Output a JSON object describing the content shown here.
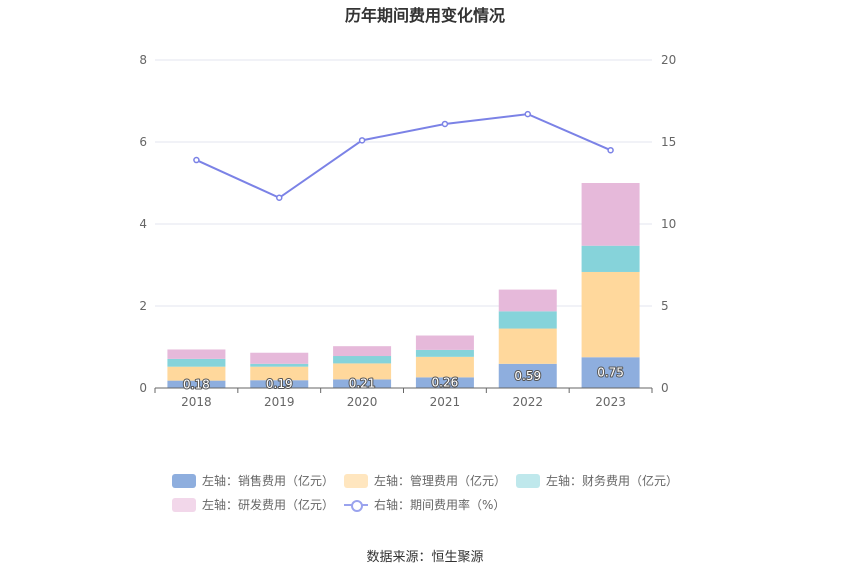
{
  "chart_data": {
    "type": "bar",
    "title": "历年期间费用变化情况",
    "categories": [
      "2018",
      "2019",
      "2020",
      "2021",
      "2022",
      "2023"
    ],
    "stacked": true,
    "y_left": {
      "min": 0,
      "max": 8,
      "ticks": [
        "0",
        "2",
        "4",
        "6",
        "8"
      ]
    },
    "y_right": {
      "min": 0,
      "max": 20,
      "ticks": [
        "0",
        "5",
        "10",
        "15",
        "20"
      ]
    },
    "series": [
      {
        "name": "左轴：销售费用（亿元）",
        "axis": "left",
        "kind": "bar",
        "color": "#8eaede",
        "values": [
          0.18,
          0.19,
          0.21,
          0.26,
          0.59,
          0.75
        ],
        "labels": [
          "0.18",
          "0.19",
          "0.21",
          "0.26",
          "0.59",
          "0.75"
        ]
      },
      {
        "name": "左轴：管理费用（亿元）",
        "axis": "left",
        "kind": "bar",
        "color": "#ffd89c",
        "values": [
          0.34,
          0.33,
          0.39,
          0.5,
          0.86,
          2.08
        ]
      },
      {
        "name": "左轴：财务费用（亿元）",
        "axis": "left",
        "kind": "bar",
        "color": "#86d3da",
        "values": [
          0.19,
          0.07,
          0.18,
          0.17,
          0.42,
          0.64
        ]
      },
      {
        "name": "左轴：研发费用（亿元）",
        "axis": "left",
        "kind": "bar",
        "color": "#e6b9da",
        "values": [
          0.23,
          0.27,
          0.24,
          0.35,
          0.53,
          1.53
        ]
      },
      {
        "name": "右轴：期间费用率（%）",
        "axis": "right",
        "kind": "line",
        "color": "#7b82e6",
        "values": [
          13.9,
          11.6,
          15.1,
          16.1,
          16.7,
          14.5
        ]
      }
    ],
    "legend_position": "bottom",
    "grid": true
  },
  "source": "数据来源：恒生聚源"
}
